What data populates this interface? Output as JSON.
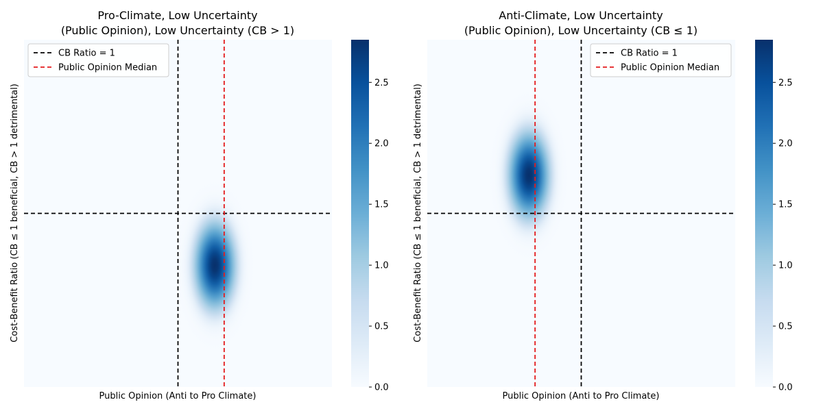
{
  "chart_data": [
    {
      "type": "heatmap",
      "title_line1": "Pro-Climate, Low Uncertainty",
      "title_line2": "(Public Opinion), Low Uncertainty (CB > 1)",
      "xlabel": "Public Opinion (Anti to Pro Climate)",
      "ylabel": "Cost-Benefit Ratio (CB ≤ 1 beneficial, CB > 1 detrimental)",
      "xlim": [
        0,
        1
      ],
      "ylim": [
        0,
        1
      ],
      "density_peak": {
        "x": 0.62,
        "y": 0.35,
        "sigma_x": 0.045,
        "sigma_y": 0.085,
        "max": 2.85
      },
      "reference_lines": {
        "cb_ratio_x": 0.5,
        "cb_ratio_y": 0.5,
        "public_opinion_median_x": 0.65
      },
      "legend": {
        "position": "upper-left",
        "entries": [
          {
            "label": "CB Ratio = 1",
            "color": "#000000",
            "style": "dashed"
          },
          {
            "label": "Public Opinion Median",
            "color": "#e41a1c",
            "style": "dashed"
          }
        ]
      },
      "colorbar": {
        "ticks": [
          "0.0",
          "0.5",
          "1.0",
          "1.5",
          "2.0",
          "2.5"
        ],
        "min": 0,
        "max": 2.85
      },
      "colormap": "Blues"
    },
    {
      "type": "heatmap",
      "title_line1": "Anti-Climate, Low Uncertainty",
      "title_line2": "(Public Opinion), Low Uncertainty (CB ≤ 1)",
      "xlabel": "Public Opinion (Anti to Pro Climate)",
      "ylabel": "Cost-Benefit Ratio (CB ≤ 1 beneficial, CB > 1 detrimental)",
      "xlim": [
        0,
        1
      ],
      "ylim": [
        0,
        1
      ],
      "density_peak": {
        "x": 0.33,
        "y": 0.61,
        "sigma_x": 0.045,
        "sigma_y": 0.085,
        "max": 2.85
      },
      "reference_lines": {
        "cb_ratio_x": 0.5,
        "cb_ratio_y": 0.5,
        "public_opinion_median_x": 0.35
      },
      "legend": {
        "position": "upper-right",
        "entries": [
          {
            "label": "CB Ratio = 1",
            "color": "#000000",
            "style": "dashed"
          },
          {
            "label": "Public Opinion Median",
            "color": "#e41a1c",
            "style": "dashed"
          }
        ]
      },
      "colorbar": {
        "ticks": [
          "0.0",
          "0.5",
          "1.0",
          "1.5",
          "2.0",
          "2.5"
        ],
        "min": 0,
        "max": 2.85
      },
      "colormap": "Blues"
    }
  ]
}
